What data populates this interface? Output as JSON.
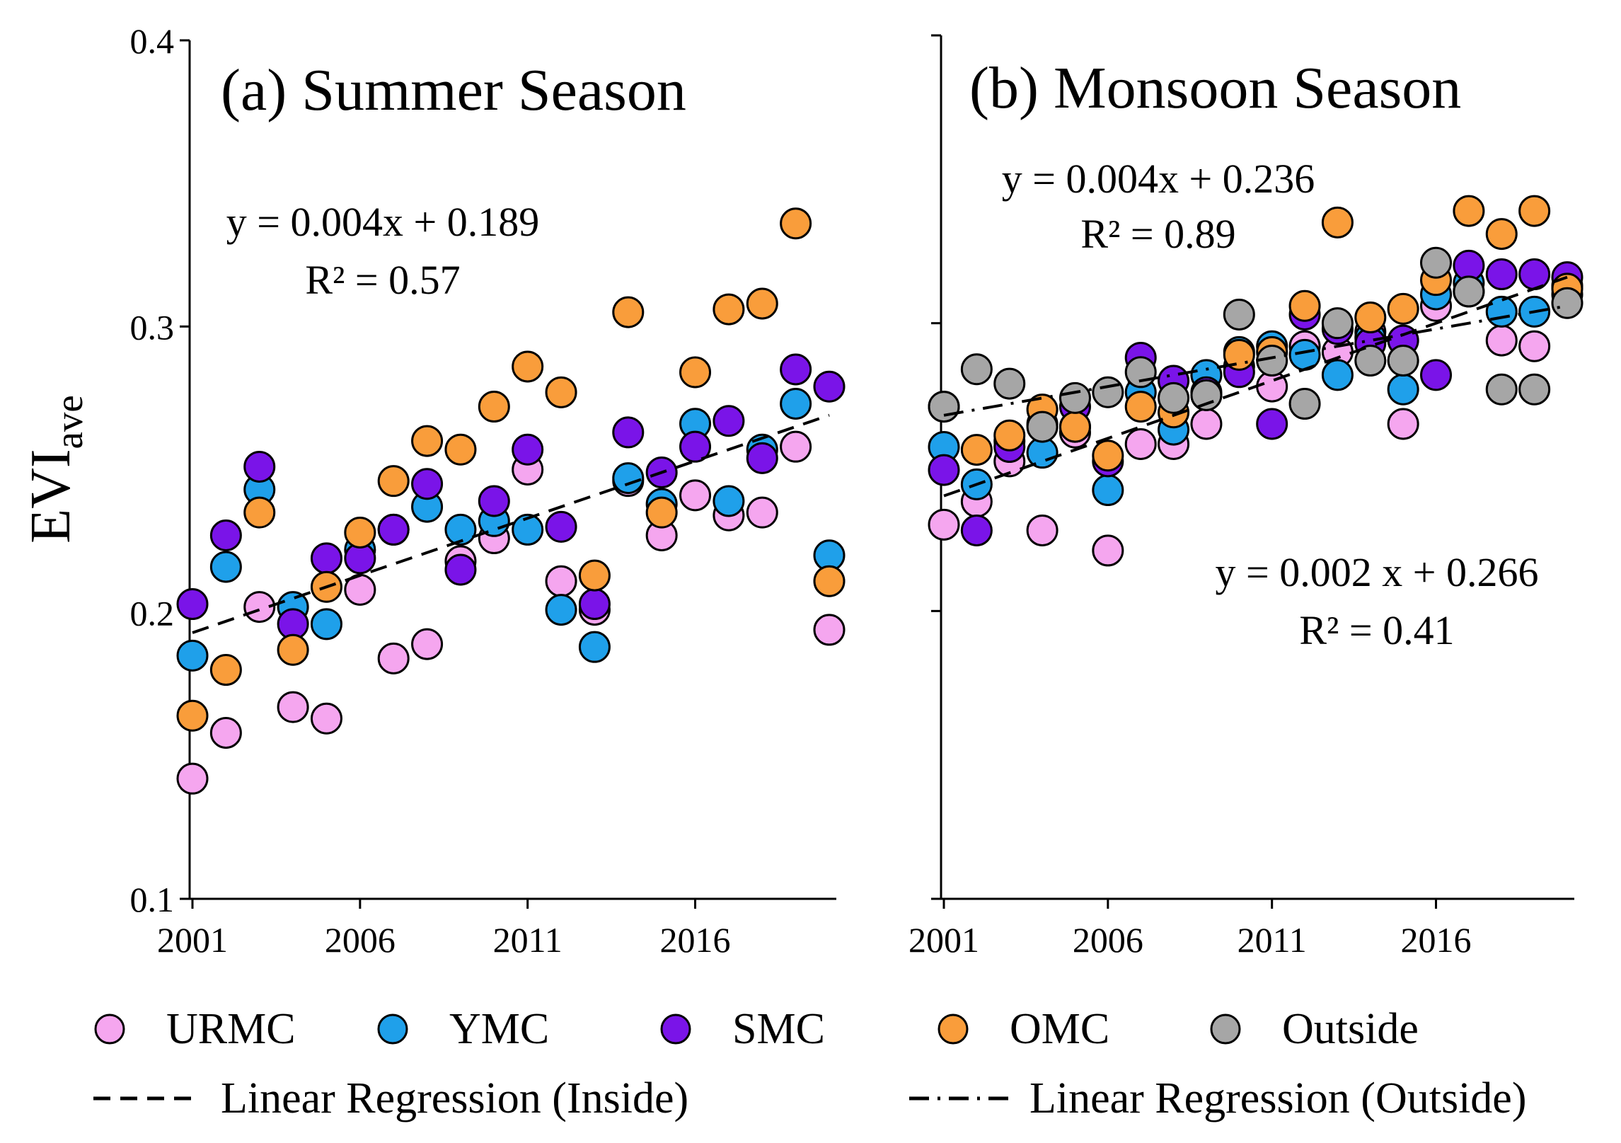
{
  "chart_data": [
    {
      "type": "scatter",
      "panel": "a",
      "title": "(a) Summer Season",
      "ylabel": "EVI",
      "ylabel_sub": "ave",
      "ylim": [
        0.1,
        0.4
      ],
      "xlim": [
        2001,
        2020
      ],
      "yticks": [
        0.1,
        0.2,
        0.3,
        0.4
      ],
      "ytick_labels": [
        "0.1",
        "0.2",
        "0.3",
        "0.4"
      ],
      "xticks": [
        2001,
        2006,
        2011,
        2016
      ],
      "xtick_labels": [
        "2001",
        "2006",
        "2011",
        "2016"
      ],
      "x": [
        2001,
        2002,
        2003,
        2004,
        2005,
        2006,
        2007,
        2008,
        2009,
        2010,
        2011,
        2012,
        2013,
        2014,
        2015,
        2016,
        2017,
        2018,
        2019,
        2020
      ],
      "series": [
        {
          "name": "URMC",
          "color": "#f5a6ef",
          "values": [
            0.142,
            0.158,
            0.202,
            0.167,
            0.163,
            0.208,
            0.184,
            0.189,
            0.218,
            0.226,
            0.25,
            0.211,
            0.201,
            0.246,
            0.227,
            0.241,
            0.234,
            0.235,
            0.258,
            0.194
          ]
        },
        {
          "name": "YMC",
          "color": "#1fa0ea",
          "values": [
            0.185,
            0.216,
            0.243,
            0.202,
            0.196,
            0.222,
            0.229,
            0.237,
            0.229,
            0.232,
            0.229,
            0.201,
            0.188,
            0.247,
            0.238,
            0.266,
            0.239,
            0.257,
            0.273,
            0.22
          ]
        },
        {
          "name": "SMC",
          "color": "#7a14e8",
          "values": [
            0.203,
            0.227,
            0.251,
            0.196,
            0.219,
            0.219,
            0.229,
            0.245,
            0.215,
            0.239,
            0.257,
            0.23,
            0.203,
            0.263,
            0.249,
            0.258,
            0.267,
            0.254,
            0.285,
            0.279
          ]
        },
        {
          "name": "OMC",
          "color": "#f99d3b",
          "values": [
            0.164,
            0.18,
            0.235,
            0.187,
            0.209,
            0.228,
            0.246,
            0.26,
            0.257,
            0.272,
            0.286,
            0.277,
            0.213,
            0.305,
            0.235,
            0.284,
            0.306,
            0.308,
            0.336,
            0.211
          ]
        }
      ],
      "regressions": [
        {
          "name": "Linear Regression (Inside)",
          "style": "dashed",
          "slope": 0.004,
          "intercept": 0.189,
          "equation": "y = 0.004x + 0.189",
          "r2": "R² = 0.57"
        }
      ]
    },
    {
      "type": "scatter",
      "panel": "b",
      "title": "(b) Monsoon Season",
      "ylim": [
        0.1,
        0.4
      ],
      "xlim": [
        2001,
        2020
      ],
      "xticks": [
        2001,
        2006,
        2011,
        2016
      ],
      "xtick_labels": [
        "2001",
        "2006",
        "2011",
        "2016"
      ],
      "x": [
        2001,
        2002,
        2003,
        2004,
        2005,
        2006,
        2007,
        2008,
        2009,
        2010,
        2011,
        2012,
        2013,
        2014,
        2015,
        2016,
        2017,
        2018,
        2019,
        2020
      ],
      "series": [
        {
          "name": "URMC",
          "color": "#f5a6ef",
          "values": [
            0.23,
            0.238,
            0.252,
            0.228,
            0.262,
            0.221,
            0.258,
            0.258,
            0.265,
            0.285,
            0.278,
            0.292,
            0.29,
            0.297,
            0.265,
            0.306,
            0.311,
            0.294,
            0.292,
            0.31
          ]
        },
        {
          "name": "YMC",
          "color": "#1fa0ea",
          "values": [
            0.257,
            0.244,
            0.259,
            0.255,
            0.264,
            0.242,
            0.276,
            0.263,
            0.282,
            0.29,
            0.292,
            0.289,
            0.282,
            0.295,
            0.277,
            0.31,
            0.314,
            0.304,
            0.304,
            0.313
          ]
        },
        {
          "name": "SMC",
          "color": "#7a14e8",
          "values": [
            0.249,
            0.228,
            0.257,
            0.265,
            0.271,
            0.252,
            0.288,
            0.28,
            0.276,
            0.283,
            0.265,
            0.303,
            0.298,
            0.293,
            0.294,
            0.282,
            0.32,
            0.317,
            0.317,
            0.316
          ]
        },
        {
          "name": "OMC",
          "color": "#f99d3b",
          "values": [
            0.271,
            0.256,
            0.261,
            0.27,
            0.264,
            0.254,
            0.271,
            0.269,
            0.275,
            0.289,
            0.29,
            0.306,
            0.335,
            0.302,
            0.305,
            0.315,
            0.339,
            0.331,
            0.339,
            0.312
          ]
        },
        {
          "name": "Outside",
          "color": "#a6a6a6",
          "values": [
            0.271,
            0.284,
            0.279,
            0.264,
            0.274,
            0.276,
            0.283,
            0.274,
            0.275,
            0.303,
            0.287,
            0.272,
            0.3,
            0.287,
            0.287,
            0.321,
            0.311,
            0.277,
            0.277,
            0.307
          ]
        }
      ],
      "regressions": [
        {
          "name": "Linear Regression (Inside)",
          "style": "dashed",
          "slope": 0.004,
          "intercept": 0.236,
          "equation": "y = 0.004x + 0.236",
          "r2": "R² = 0.89"
        },
        {
          "name": "Linear Regression (Outside)",
          "style": "dashdot",
          "slope": 0.002,
          "intercept": 0.266,
          "equation": "y = 0.002 x + 0.266",
          "r2": "R² = 0.41"
        }
      ]
    }
  ],
  "legend": {
    "markers": [
      {
        "label": "URMC",
        "color": "#f5a6ef"
      },
      {
        "label": "YMC",
        "color": "#1fa0ea"
      },
      {
        "label": "SMC",
        "color": "#7a14e8"
      },
      {
        "label": "OMC",
        "color": "#f99d3b"
      },
      {
        "label": "Outside",
        "color": "#a6a6a6"
      }
    ],
    "lines": [
      {
        "label": "Linear Regression (Inside)",
        "style": "dashed"
      },
      {
        "label": "Linear Regression (Outside)",
        "style": "dashdot"
      }
    ]
  }
}
